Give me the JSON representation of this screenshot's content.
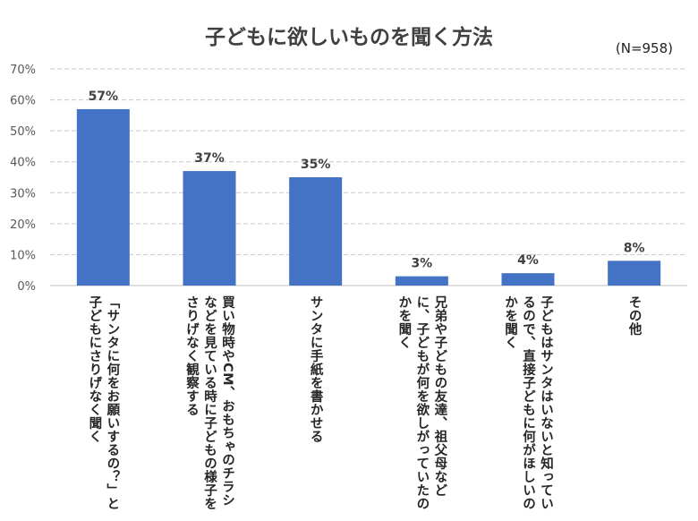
{
  "chart_data": {
    "type": "bar",
    "title": "子どもに欲しいものを聞く方法",
    "note": "(N=958)",
    "categories": [
      "「サンタに何をお願いするの？」と子どもにさりげなく聞く",
      "買い物時やCM、おもちゃのチラシなどを見ている時に子どもの様子をさりげなく観察する",
      "サンタに手紙を書かせる",
      "兄弟や子どもの友達、祖父母などに、子どもが何を欲しがっていたのかを聞く",
      "子どもはサンタはいないと知っているので、直接子どもに何がほしいのかを聞く",
      "その他"
    ],
    "values": [
      57,
      37,
      35,
      3,
      4,
      8
    ],
    "value_labels": [
      "57%",
      "37%",
      "35%",
      "3%",
      "4%",
      "8%"
    ],
    "ylim": [
      0,
      70
    ],
    "yticks": [
      "0%",
      "10%",
      "20%",
      "30%",
      "40%",
      "50%",
      "60%",
      "70%"
    ],
    "xlabel": "",
    "ylabel": "",
    "grid": true,
    "bar_color": "#4472C4"
  }
}
